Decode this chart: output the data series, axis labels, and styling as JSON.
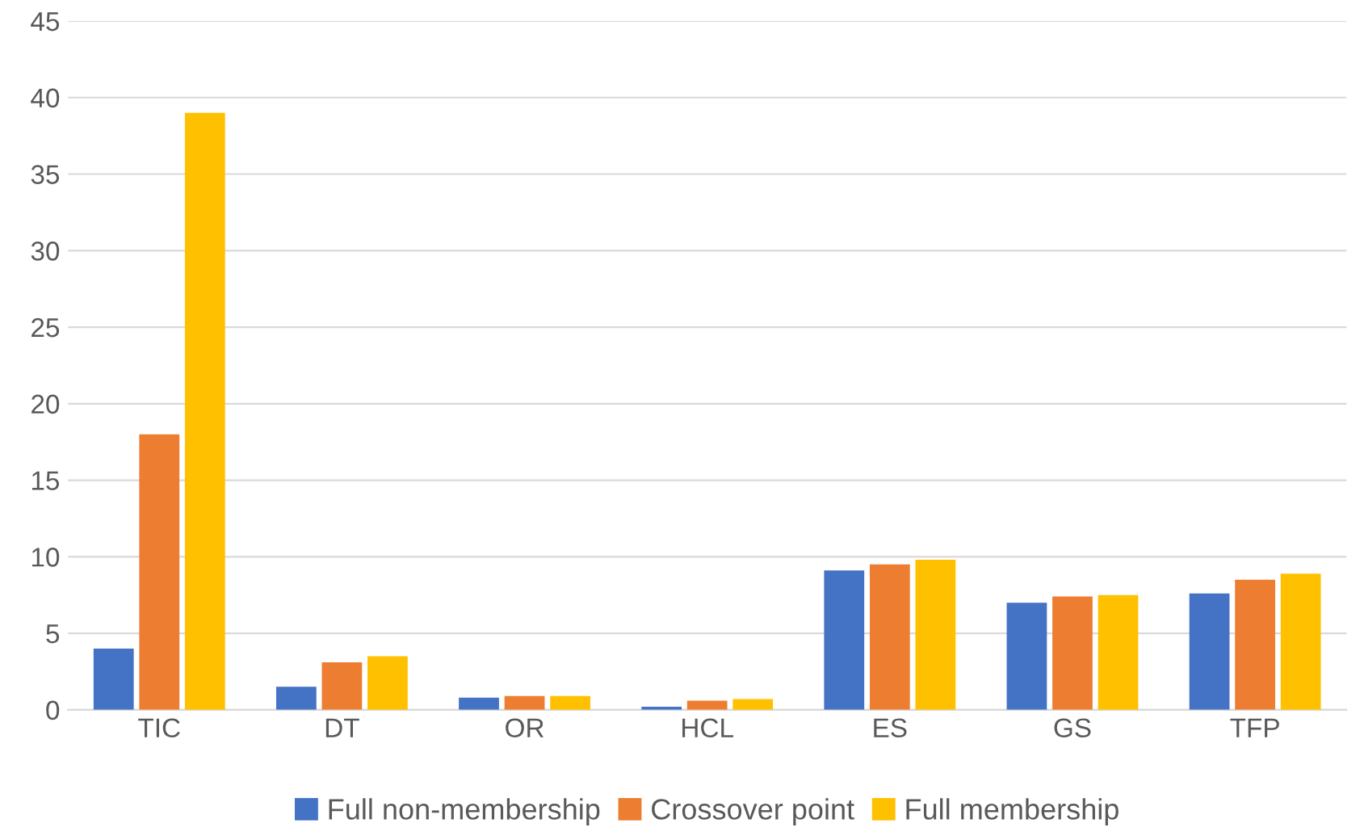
{
  "chart_data": {
    "type": "bar",
    "categories": [
      "TIC",
      "DT",
      "OR",
      "HCL",
      "ES",
      "GS",
      "TFP"
    ],
    "series": [
      {
        "name": "Full non-membership",
        "color": "#4472c4",
        "values": [
          4,
          1.5,
          0.8,
          0.2,
          9.1,
          7.0,
          7.6
        ]
      },
      {
        "name": "Crossover point",
        "color": "#ed7d31",
        "values": [
          18,
          3.1,
          0.9,
          0.6,
          9.5,
          7.4,
          8.5
        ]
      },
      {
        "name": "Full membership",
        "color": "#ffc000",
        "values": [
          39,
          3.5,
          0.9,
          0.7,
          9.8,
          7.5,
          8.9
        ]
      }
    ],
    "ylim": [
      0,
      45
    ],
    "yticks": [
      0,
      5,
      10,
      15,
      20,
      25,
      30,
      35,
      40,
      45
    ],
    "grid": "y",
    "legend": "bottom"
  }
}
